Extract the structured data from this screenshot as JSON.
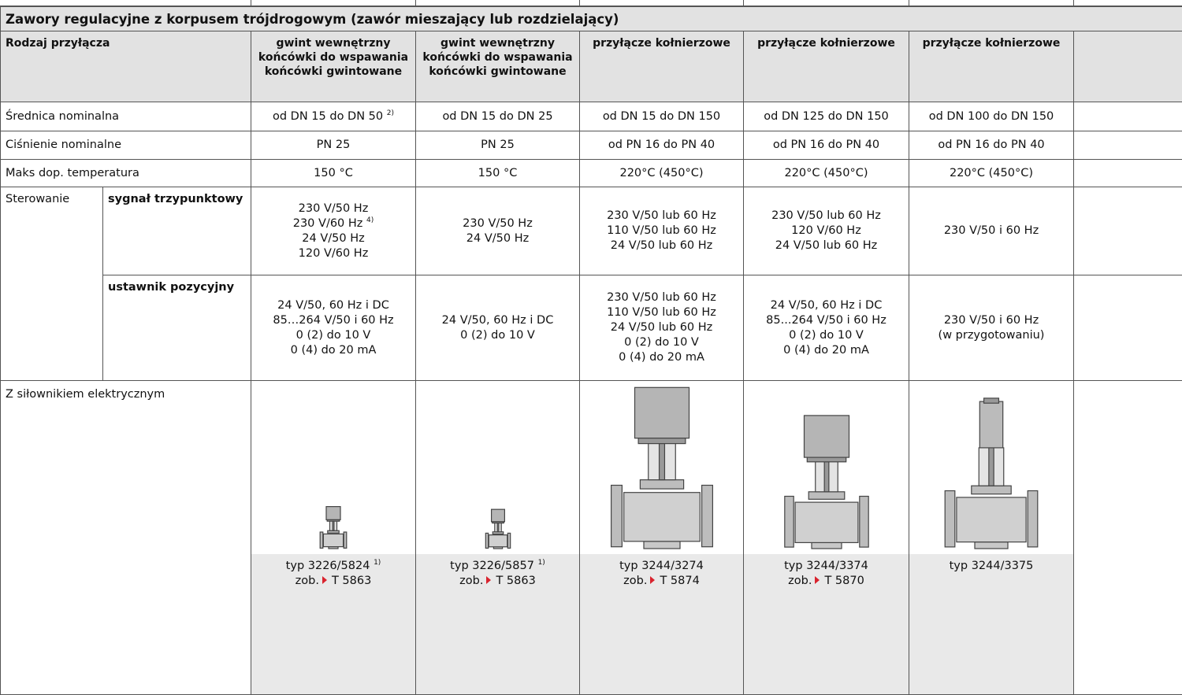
{
  "table": {
    "title": "Zawory regulacyjne z korpusem trójdrogowym (zawór mieszający lub rozdzielający)",
    "header": {
      "label": "Rodzaj przyłącza",
      "columns": [
        [
          "gwint wewnętrzny",
          "końcówki do wspawania",
          "końcówki gwintowane"
        ],
        [
          "gwint wewnętrzny",
          "końcówki do wspawania",
          "końcówki gwintowane"
        ],
        [
          "przyłącze kołnierzowe"
        ],
        [
          "przyłącze kołnierzowe"
        ],
        [
          "przyłącze kołnierzowe"
        ]
      ]
    },
    "rows": [
      {
        "label": "Średnica nominalna",
        "cells": [
          [
            {
              "text": "od DN 15 do DN 50",
              "note": "2)"
            }
          ],
          [
            "od DN 15 do DN 25"
          ],
          [
            "od DN 15 do DN 150"
          ],
          [
            "od DN 125 do DN 150"
          ],
          [
            "od DN 100 do DN 150"
          ]
        ]
      },
      {
        "label": "Ciśnienie nominalne",
        "cells": [
          [
            "PN 25"
          ],
          [
            "PN 25"
          ],
          [
            "od PN 16 do PN 40"
          ],
          [
            "od PN 16 do PN 40"
          ],
          [
            "od PN 16 do PN 40"
          ]
        ]
      },
      {
        "label": "Maks dop. temperatura",
        "cells": [
          [
            "150 °C"
          ],
          [
            "150 °C"
          ],
          [
            "220°C (450°C)"
          ],
          [
            "220°C (450°C)"
          ],
          [
            "220°C (450°C)"
          ]
        ]
      }
    ],
    "control": {
      "label": "Sterowanie",
      "rows": [
        {
          "label": "sygnał trzypunktowy",
          "cells": [
            [
              "230 V/50 Hz",
              {
                "text": "230 V/60 Hz",
                "note": "4)"
              },
              "24 V/50 Hz",
              "120 V/60 Hz"
            ],
            [
              "230 V/50 Hz",
              "24 V/50 Hz"
            ],
            [
              "230 V/50 lub 60 Hz",
              "110 V/50 lub 60 Hz",
              "24 V/50 lub 60 Hz"
            ],
            [
              "230 V/50 lub 60 Hz",
              "120 V/60 Hz",
              "24 V/50 lub 60 Hz"
            ],
            [
              "230 V/50 i 60 Hz"
            ]
          ]
        },
        {
          "label": "ustawnik pozycyjny",
          "cells": [
            [
              "24 V/50, 60 Hz i DC",
              "85…264 V/50 i 60 Hz",
              "0 (2) do 10 V",
              "0 (4) do 20 mA"
            ],
            [
              "24 V/50, 60 Hz i DC",
              "0 (2) do 10 V"
            ],
            [
              "230 V/50 lub 60 Hz",
              "110 V/50 lub 60 Hz",
              "24 V/50 lub 60 Hz",
              "0 (2) do 10 V",
              "0 (4) do 20 mA"
            ],
            [
              "24 V/50, 60 Hz i DC",
              "85...264 V/50 i 60 Hz",
              "0 (2) do 10 V",
              "0 (4) do 20 mA"
            ],
            [
              "230 V/50 i 60 Hz",
              "(w przygotowaniu)"
            ]
          ]
        }
      ]
    },
    "actuator": {
      "label": "Z siłownikiem elektrycznym",
      "cells": [
        {
          "type": "typ 3226/5824",
          "note": "1)",
          "see": "zob.",
          "ref": "T 5863"
        },
        {
          "type": "typ 3226/5857",
          "note": "1)",
          "see": "zob.",
          "ref": "T 5863"
        },
        {
          "type": "typ 3244/3274",
          "see": "zob.",
          "ref": "T 5874"
        },
        {
          "type": "typ 3244/3374",
          "see": "zob.",
          "ref": "T 5870"
        },
        {
          "type": "typ 3244/3375"
        }
      ]
    }
  }
}
